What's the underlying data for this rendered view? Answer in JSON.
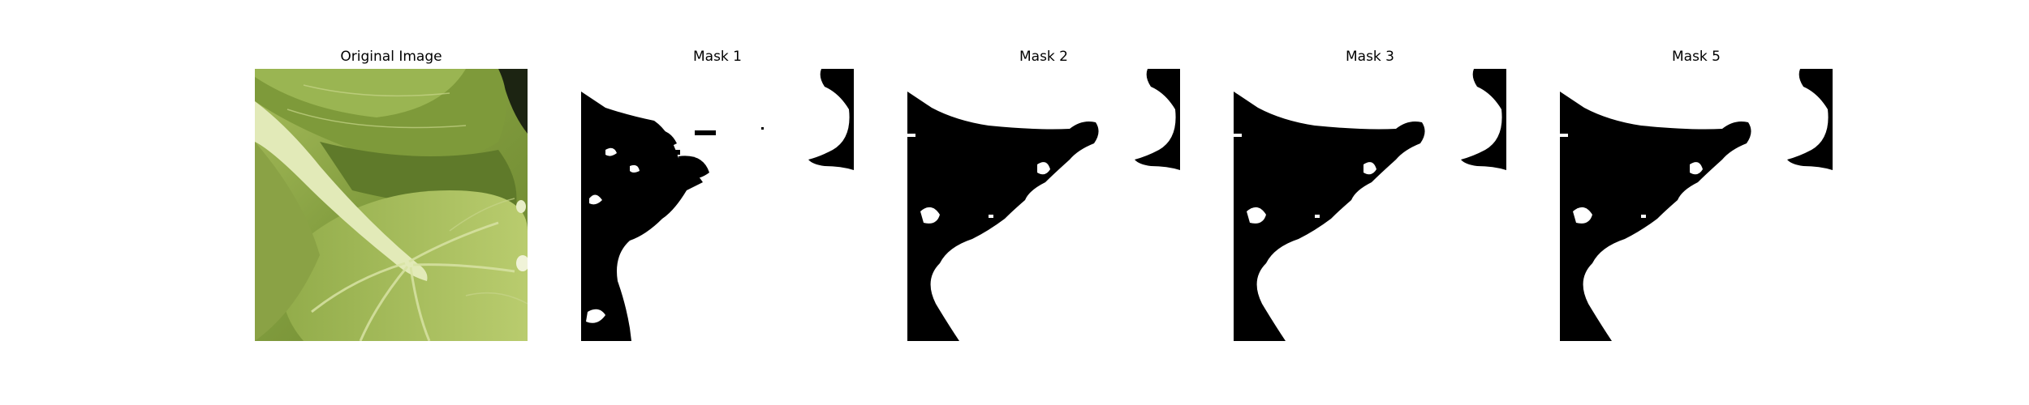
{
  "figure": {
    "panels": [
      {
        "title": "Original Image",
        "kind": "photo",
        "subject": "leaf-photo"
      },
      {
        "title": "Mask 1",
        "kind": "mask"
      },
      {
        "title": "Mask 2",
        "kind": "mask"
      },
      {
        "title": "Mask 3",
        "kind": "mask"
      },
      {
        "title": "Mask 5",
        "kind": "mask"
      }
    ],
    "colors": {
      "background": "#ffffff",
      "mask_foreground": "#ffffff",
      "mask_background": "#000000",
      "leaf_dark": "#5e7a2e",
      "leaf_mid": "#8fa84a",
      "leaf_light": "#c2d07a",
      "stem": "#e4ecc0"
    }
  }
}
